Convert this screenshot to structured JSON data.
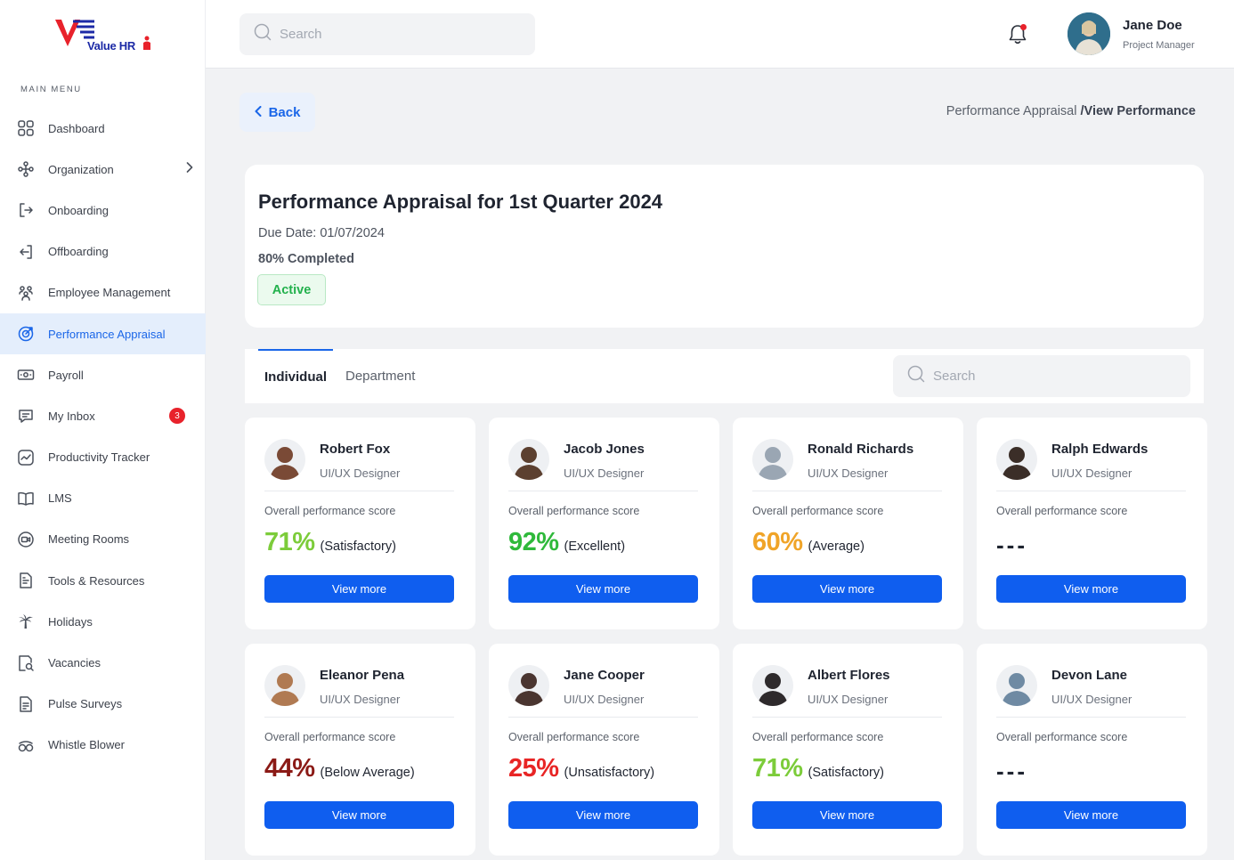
{
  "brand": {
    "logo_text": "Value HR"
  },
  "sidebar": {
    "section_label": "MAIN MENU",
    "items": [
      {
        "label": "Dashboard",
        "icon": "grid-icon"
      },
      {
        "label": "Organization",
        "icon": "org-icon",
        "has_submenu": true
      },
      {
        "label": "Onboarding",
        "icon": "sign-in-icon"
      },
      {
        "label": "Offboarding",
        "icon": "sign-out-icon"
      },
      {
        "label": "Employee Management",
        "icon": "people-icon"
      },
      {
        "label": "Performance Appraisal",
        "icon": "target-icon",
        "active": true
      },
      {
        "label": "Payroll",
        "icon": "money-icon"
      },
      {
        "label": "My Inbox",
        "icon": "message-icon",
        "badge": "3"
      },
      {
        "label": "Productivity Tracker",
        "icon": "trend-icon"
      },
      {
        "label": "LMS",
        "icon": "book-icon"
      },
      {
        "label": "Meeting Rooms",
        "icon": "camera-icon"
      },
      {
        "label": "Tools & Resources",
        "icon": "tools-icon"
      },
      {
        "label": "Holidays",
        "icon": "palm-icon"
      },
      {
        "label": "Vacancies",
        "icon": "search-doc-icon"
      },
      {
        "label": "Pulse Surveys",
        "icon": "survey-icon"
      },
      {
        "label": "Whistle Blower",
        "icon": "whistle-icon"
      }
    ]
  },
  "topbar": {
    "search_placeholder": "Search",
    "user": {
      "name": "Jane Doe",
      "role": "Project Manager"
    }
  },
  "header": {
    "back_label": "Back",
    "breadcrumb_parent": "Performance Appraisal",
    "breadcrumb_current": "/View Performance"
  },
  "summary": {
    "title": "Performance Appraisal for 1st Quarter 2024",
    "due_date": "Due Date: 01/07/2024",
    "completed": "80% Completed",
    "status": "Active"
  },
  "tabs": {
    "individual": "Individual",
    "department": "Department",
    "search_placeholder": "Search"
  },
  "employees": [
    {
      "name": "Robert Fox",
      "role": "UI/UX Designer",
      "score_label": "Overall performance score",
      "score": "71%",
      "rating": "(Satisfactory)",
      "color": "#7ccc3a",
      "button": "View more",
      "avatar_color": "#7a4a36"
    },
    {
      "name": "Jacob Jones",
      "role": "UI/UX Designer",
      "score_label": "Overall performance score",
      "score": "92%",
      "rating": "(Excellent)",
      "color": "#2fb93b",
      "button": "View more",
      "avatar_color": "#5c4030"
    },
    {
      "name": "Ronald Richards",
      "role": "UI/UX Designer",
      "score_label": "Overall performance score",
      "score": "60%",
      "rating": "(Average)",
      "color": "#f0a428",
      "button": "View more",
      "avatar_color": "#9aa6b3"
    },
    {
      "name": "Ralph Edwards",
      "role": "UI/UX Designer",
      "score_label": "Overall performance score",
      "score": "---",
      "rating": "",
      "color": "#1f2430",
      "button": "View more",
      "avatar_color": "#3b2e28"
    },
    {
      "name": "Eleanor Pena",
      "role": "UI/UX Designer",
      "score_label": "Overall performance score",
      "score": "44%",
      "rating": "(Below Average)",
      "color": "#8b1a16",
      "button": "View more",
      "avatar_color": "#b07a52"
    },
    {
      "name": "Jane Cooper",
      "role": "UI/UX Designer",
      "score_label": "Overall performance score",
      "score": "25%",
      "rating": "(Unsatisfactory)",
      "color": "#e82525",
      "button": "View more",
      "avatar_color": "#4a3530"
    },
    {
      "name": "Albert Flores",
      "role": "UI/UX Designer",
      "score_label": "Overall performance score",
      "score": "71%",
      "rating": "(Satisfactory)",
      "color": "#7ccc3a",
      "button": "View more",
      "avatar_color": "#2e2a2c"
    },
    {
      "name": "Devon Lane",
      "role": "UI/UX Designer",
      "score_label": "Overall performance score",
      "score": "---",
      "rating": "",
      "color": "#1f2430",
      "button": "View more",
      "avatar_color": "#6f8aa3"
    }
  ]
}
